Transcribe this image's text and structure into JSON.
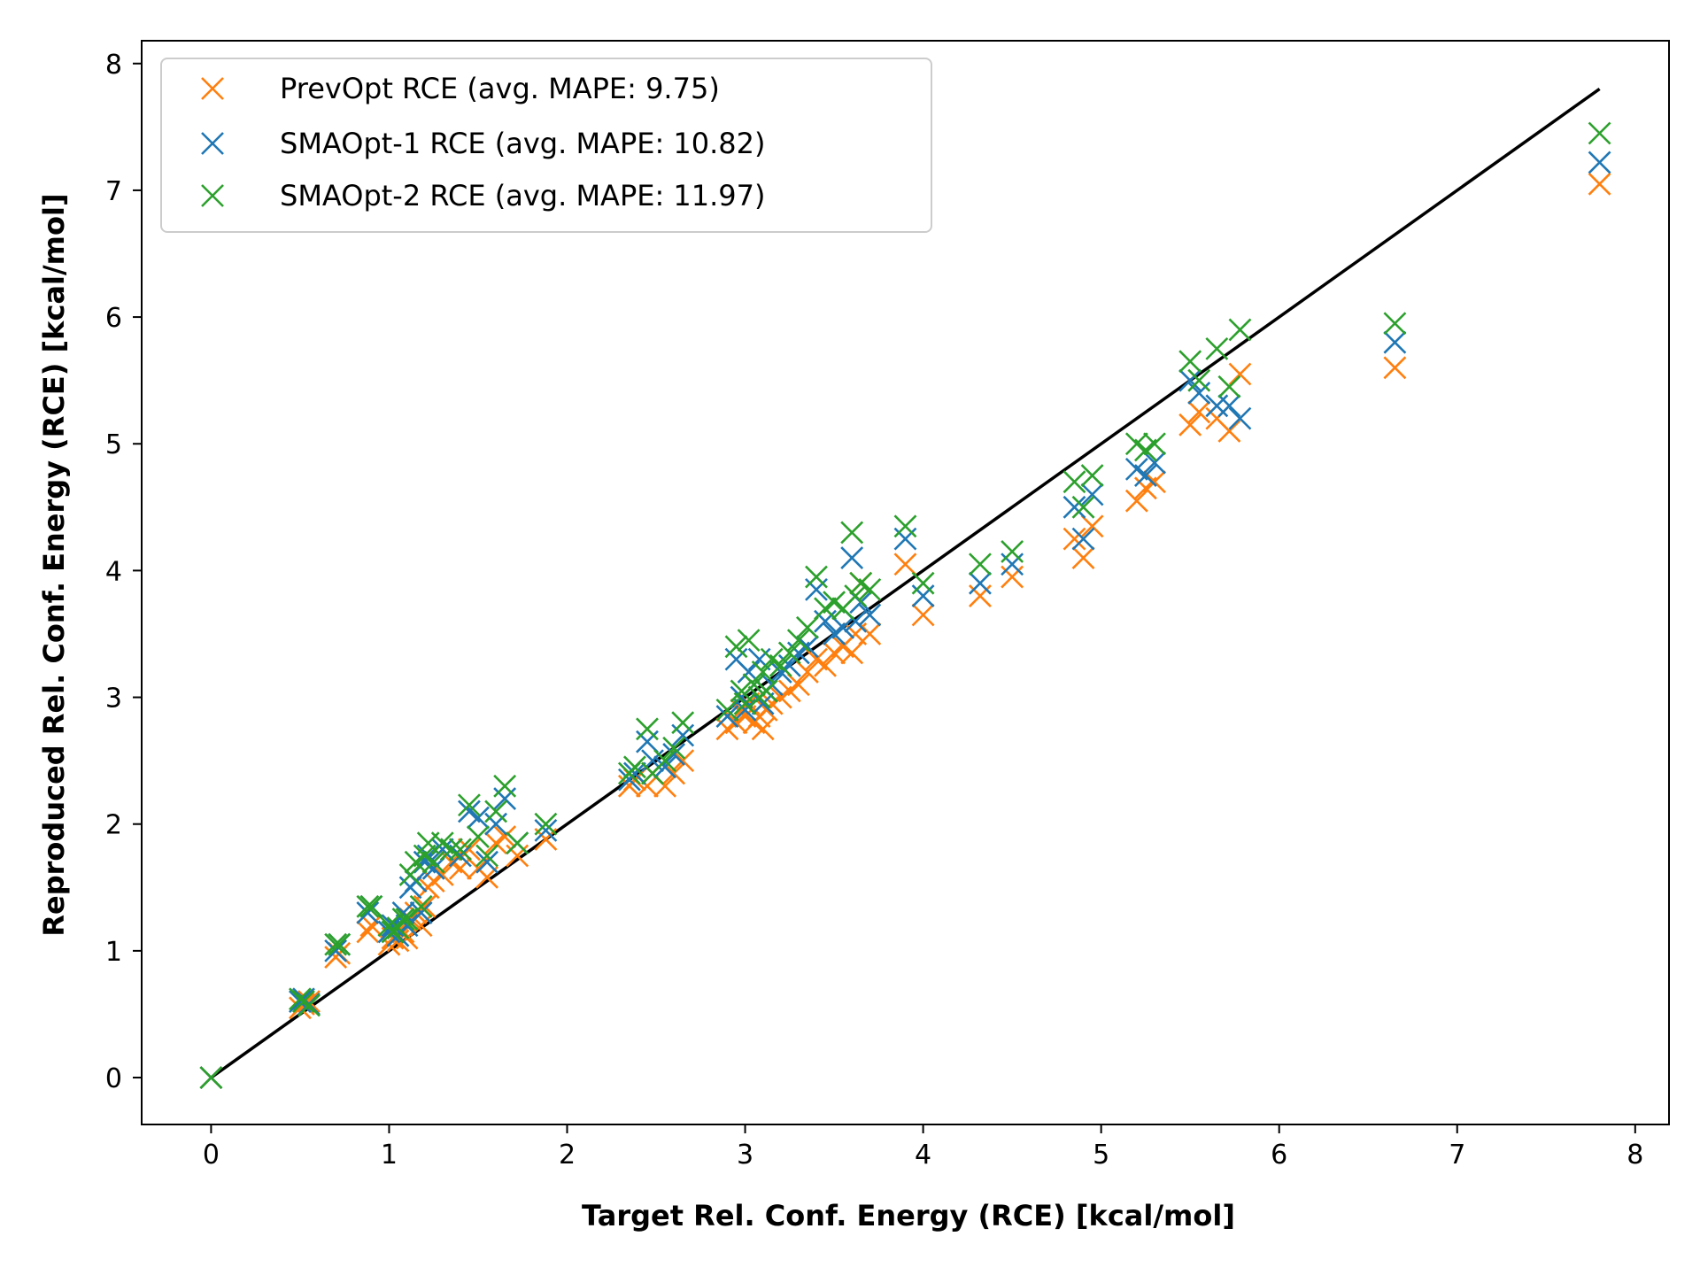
{
  "chart_data": {
    "type": "scatter",
    "title": "",
    "xlabel": "Target Rel. Conf. Energy (RCE) [kcal/mol]",
    "ylabel": "Reproduced Rel. Conf. Energy (RCE) [kcal/mol]",
    "xlim": [
      -0.39,
      8.19
    ],
    "ylim": [
      -0.37,
      8.18
    ],
    "xticks": [
      0,
      1,
      2,
      3,
      4,
      5,
      6,
      7,
      8
    ],
    "yticks": [
      0,
      1,
      2,
      3,
      4,
      5,
      6,
      7,
      8
    ],
    "grid": false,
    "legend_position": "top-left",
    "reference_line": {
      "x": [
        0,
        7.8
      ],
      "y": [
        0,
        7.8
      ],
      "color": "#000000"
    },
    "x": [
      0,
      0.5,
      0.52,
      0.55,
      0.7,
      0.72,
      0.88,
      0.9,
      1.0,
      1.02,
      1.05,
      1.08,
      1.1,
      1.12,
      1.15,
      1.18,
      1.2,
      1.22,
      1.25,
      1.3,
      1.35,
      1.4,
      1.45,
      1.5,
      1.55,
      1.6,
      1.65,
      1.72,
      1.88,
      2.35,
      2.38,
      2.45,
      2.48,
      2.55,
      2.6,
      2.65,
      2.9,
      2.95,
      2.98,
      3.0,
      3.02,
      3.05,
      3.08,
      3.1,
      3.12,
      3.15,
      3.2,
      3.25,
      3.3,
      3.35,
      3.4,
      3.45,
      3.5,
      3.55,
      3.6,
      3.62,
      3.65,
      3.7,
      3.9,
      4.0,
      4.32,
      4.5,
      4.85,
      4.9,
      4.95,
      5.2,
      5.25,
      5.3,
      5.5,
      5.55,
      5.65,
      5.72,
      5.78,
      6.65,
      7.8
    ],
    "series": [
      {
        "name": "PrevOpt RCE (avg. MAPE: 9.75)",
        "color": "#ff7f0e",
        "y": [
          0.0,
          0.55,
          0.58,
          0.6,
          0.95,
          0.98,
          1.15,
          1.2,
          1.05,
          1.1,
          1.08,
          1.15,
          1.1,
          1.25,
          1.3,
          1.2,
          1.35,
          1.5,
          1.55,
          1.6,
          1.7,
          1.65,
          1.8,
          1.65,
          1.58,
          1.85,
          1.9,
          1.75,
          1.88,
          2.3,
          2.35,
          2.3,
          2.4,
          2.3,
          2.4,
          2.5,
          2.75,
          2.8,
          2.9,
          2.85,
          2.95,
          2.8,
          2.85,
          2.75,
          2.9,
          2.95,
          3.0,
          3.05,
          3.1,
          3.2,
          3.3,
          3.25,
          3.35,
          3.4,
          3.35,
          3.5,
          3.9,
          3.5,
          4.05,
          3.65,
          3.8,
          3.95,
          4.25,
          4.1,
          4.35,
          4.55,
          4.65,
          4.7,
          5.15,
          5.25,
          5.2,
          5.1,
          5.55,
          5.6,
          7.05
        ]
      },
      {
        "name": "SMAOpt-1 RCE (avg. MAPE: 10.82)",
        "color": "#1f77b4",
        "y": [
          0.0,
          0.6,
          0.62,
          0.58,
          1.0,
          1.05,
          1.3,
          1.35,
          1.15,
          1.2,
          1.12,
          1.3,
          1.2,
          1.5,
          1.55,
          1.3,
          1.7,
          1.75,
          1.65,
          1.8,
          1.8,
          1.75,
          2.1,
          2.05,
          1.7,
          2.0,
          2.2,
          1.85,
          1.95,
          2.35,
          2.4,
          2.65,
          2.5,
          2.45,
          2.55,
          2.7,
          2.85,
          3.3,
          3.0,
          2.9,
          3.2,
          3.1,
          3.3,
          2.95,
          3.05,
          3.1,
          3.2,
          3.25,
          3.35,
          3.4,
          3.85,
          3.6,
          3.5,
          3.55,
          4.1,
          3.6,
          3.75,
          3.65,
          4.25,
          3.8,
          3.9,
          4.05,
          4.5,
          4.25,
          4.6,
          4.8,
          4.75,
          4.85,
          5.5,
          5.4,
          5.3,
          5.3,
          5.2,
          5.8,
          7.22
        ]
      },
      {
        "name": "SMAOpt-2 RCE (avg. MAPE: 11.97)",
        "color": "#2ca02c",
        "y": [
          0.0,
          0.62,
          0.6,
          0.57,
          1.05,
          1.05,
          1.35,
          1.35,
          1.2,
          1.15,
          1.18,
          1.25,
          1.25,
          1.6,
          1.7,
          1.35,
          1.75,
          1.85,
          1.7,
          1.85,
          1.8,
          1.8,
          2.15,
          1.9,
          1.75,
          2.1,
          2.3,
          1.85,
          2.0,
          2.4,
          2.45,
          2.75,
          2.4,
          2.5,
          2.6,
          2.8,
          2.9,
          3.4,
          3.05,
          2.95,
          3.45,
          3.1,
          3.0,
          3.2,
          3.05,
          3.3,
          3.25,
          3.35,
          3.45,
          3.55,
          3.95,
          3.7,
          3.75,
          3.7,
          4.3,
          3.8,
          3.9,
          3.85,
          4.35,
          3.9,
          4.05,
          4.15,
          4.7,
          4.5,
          4.75,
          5.0,
          4.95,
          5.0,
          5.65,
          5.5,
          5.75,
          5.45,
          5.9,
          5.95,
          7.45
        ]
      }
    ]
  }
}
